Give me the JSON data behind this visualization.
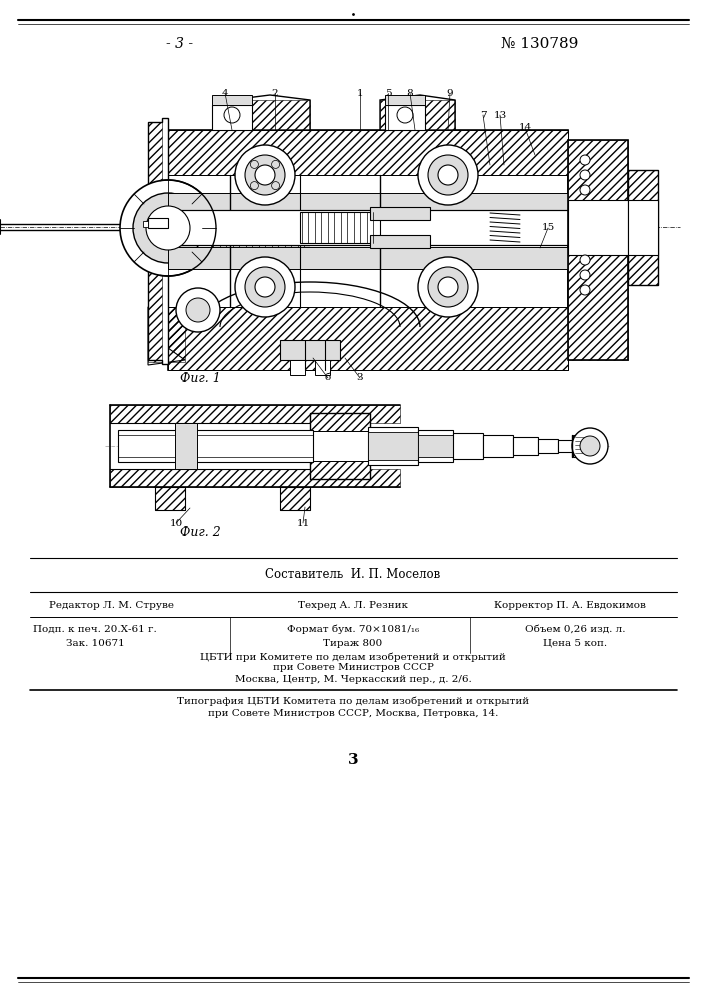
{
  "page_number_left": "- 3 -",
  "page_number_right": "№ 130789",
  "fig1_caption": "Фиг. 1",
  "fig2_caption": "Фиг. 2",
  "label_6": "б",
  "label_3": "3",
  "sestavitel_line": "Составитель  И. П. Моселов",
  "editor_line": "Редактор Л. М. Струве",
  "tehred_line": "Техред А. Л. Резник",
  "korrektor_line": "Корректор П. А. Евдокимов",
  "podn_line": "Подп. к печ. 20.Х-61 г.",
  "format_line": "Формат бум. 70×1081/\u0016",
  "obem_line": "Объем 0,26 изд. л.",
  "zak_line": "Зак. 10671",
  "tirazh_line": "Тираж 800",
  "cena_line": "Цена 5 коп.",
  "cbti_line1": "ЦБТИ при Комитете по делам изобретений и открытий",
  "cbti_line2": "при Совете Министров СССР",
  "cbti_line3": "Москва, Центр, М. Черкасский пер., д. 2/6.",
  "tipografia_line1": "Типография ЦБТИ Комитета по делам изобретений и открытий",
  "tipografia_line2": "при Совете Министров СССР, Москва, Петровка, 14.",
  "page_num_bottom": "3",
  "bg_color": "#ffffff",
  "text_color": "#000000",
  "line_color": "#000000"
}
